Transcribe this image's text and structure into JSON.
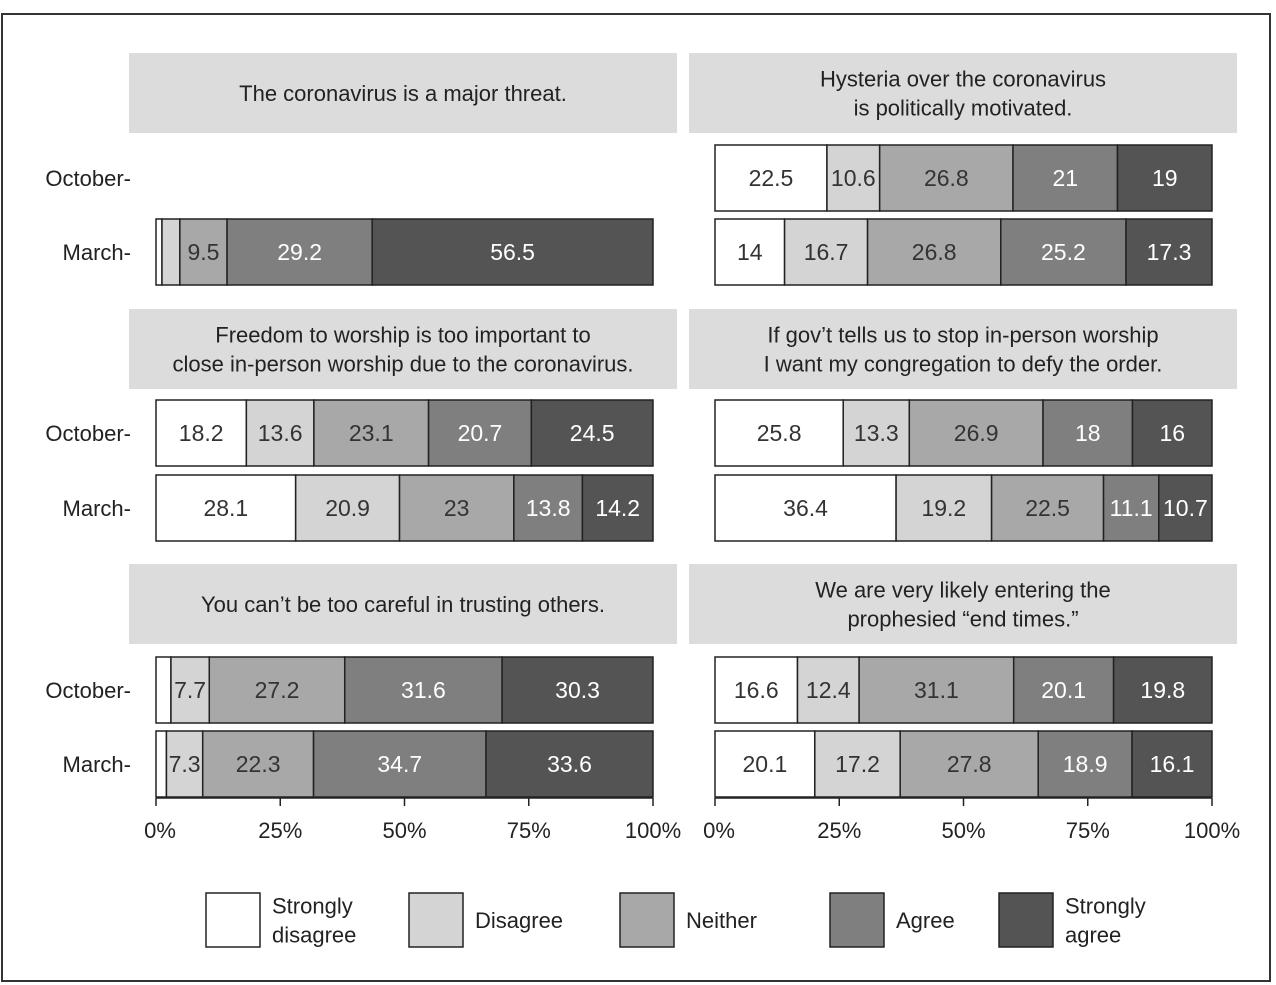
{
  "chart_data": {
    "type": "bar",
    "stacked": true,
    "orientation": "horizontal",
    "row_labels": [
      "October-",
      "March-"
    ],
    "x_ticks": [
      "0%",
      "25%",
      "50%",
      "75%",
      "100%"
    ],
    "xlim": [
      0,
      100
    ],
    "categories": [
      "Strongly disagree",
      "Disagree",
      "Neither",
      "Agree",
      "Strongly agree"
    ],
    "colors": {
      "Strongly disagree": "#ffffff",
      "Disagree": "#d4d4d5",
      "Neither": "#a8a8a9",
      "Agree": "#7f7f80",
      "Strongly agree": "#545455"
    },
    "legend": {
      "placement": "bottom",
      "items": [
        {
          "key": "Strongly disagree",
          "lines": [
            "Strongly",
            "disagree"
          ]
        },
        {
          "key": "Disagree",
          "lines": [
            "Disagree"
          ]
        },
        {
          "key": "Neither",
          "lines": [
            "Neither"
          ]
        },
        {
          "key": "Agree",
          "lines": [
            "Agree"
          ]
        },
        {
          "key": "Strongly agree",
          "lines": [
            "Strongly",
            "agree"
          ]
        }
      ]
    },
    "panels": [
      {
        "title": [
          "The coronavirus is a major threat."
        ],
        "rows": [
          {
            "label": "October-",
            "values": null,
            "labels": null
          },
          {
            "label": "March-",
            "values": [
              1.2,
              3.6,
              9.5,
              29.2,
              56.5
            ],
            "labels": [
              "",
              "",
              "9.5",
              "29.2",
              "56.5"
            ]
          }
        ]
      },
      {
        "title": [
          "Hysteria over the coronavirus",
          "is politically motivated."
        ],
        "rows": [
          {
            "label": "October-",
            "values": [
              22.5,
              10.6,
              26.8,
              21,
              19
            ],
            "labels": [
              "22.5",
              "10.6",
              "26.8",
              "21",
              "19"
            ]
          },
          {
            "label": "March-",
            "values": [
              14,
              16.7,
              26.8,
              25.2,
              17.3
            ],
            "labels": [
              "14",
              "16.7",
              "26.8",
              "25.2",
              "17.3"
            ]
          }
        ]
      },
      {
        "title": [
          "Freedom to worship is too important to",
          "close in-person worship due to the coronavirus."
        ],
        "rows": [
          {
            "label": "October-",
            "values": [
              18.2,
              13.6,
              23.1,
              20.7,
              24.5
            ],
            "labels": [
              "18.2",
              "13.6",
              "23.1",
              "20.7",
              "24.5"
            ]
          },
          {
            "label": "March-",
            "values": [
              28.1,
              20.9,
              23,
              13.8,
              14.2
            ],
            "labels": [
              "28.1",
              "20.9",
              "23",
              "13.8",
              "14.2"
            ]
          }
        ]
      },
      {
        "title": [
          "If gov’t tells us to stop in-person worship",
          "I want my congregation to defy the order."
        ],
        "rows": [
          {
            "label": "October-",
            "values": [
              25.8,
              13.3,
              26.9,
              18,
              16
            ],
            "labels": [
              "25.8",
              "13.3",
              "26.9",
              "18",
              "16"
            ]
          },
          {
            "label": "March-",
            "values": [
              36.4,
              19.2,
              22.5,
              11.1,
              10.7
            ],
            "labels": [
              "36.4",
              "19.2",
              "22.5",
              "11.1",
              "10.7"
            ]
          }
        ]
      },
      {
        "title": [
          "You can’t be too careful in trusting others."
        ],
        "rows": [
          {
            "label": "October-",
            "values": [
              3.0,
              7.7,
              27.2,
              31.6,
              30.3
            ],
            "labels": [
              "",
              "7.7",
              "27.2",
              "31.6",
              "30.3"
            ]
          },
          {
            "label": "March-",
            "values": [
              2.1,
              7.3,
              22.3,
              34.7,
              33.6
            ],
            "labels": [
              "",
              "7.3",
              "22.3",
              "34.7",
              "33.6"
            ]
          }
        ]
      },
      {
        "title": [
          "We are very likely entering the",
          "prophesied “end times.”"
        ],
        "rows": [
          {
            "label": "October-",
            "values": [
              16.6,
              12.4,
              31.1,
              20.1,
              19.8
            ],
            "labels": [
              "16.6",
              "12.4",
              "31.1",
              "20.1",
              "19.8"
            ]
          },
          {
            "label": "March-",
            "values": [
              20.1,
              17.2,
              27.8,
              18.9,
              16.1
            ],
            "labels": [
              "20.1",
              "17.2",
              "27.8",
              "18.9",
              "16.1"
            ]
          }
        ]
      }
    ]
  }
}
